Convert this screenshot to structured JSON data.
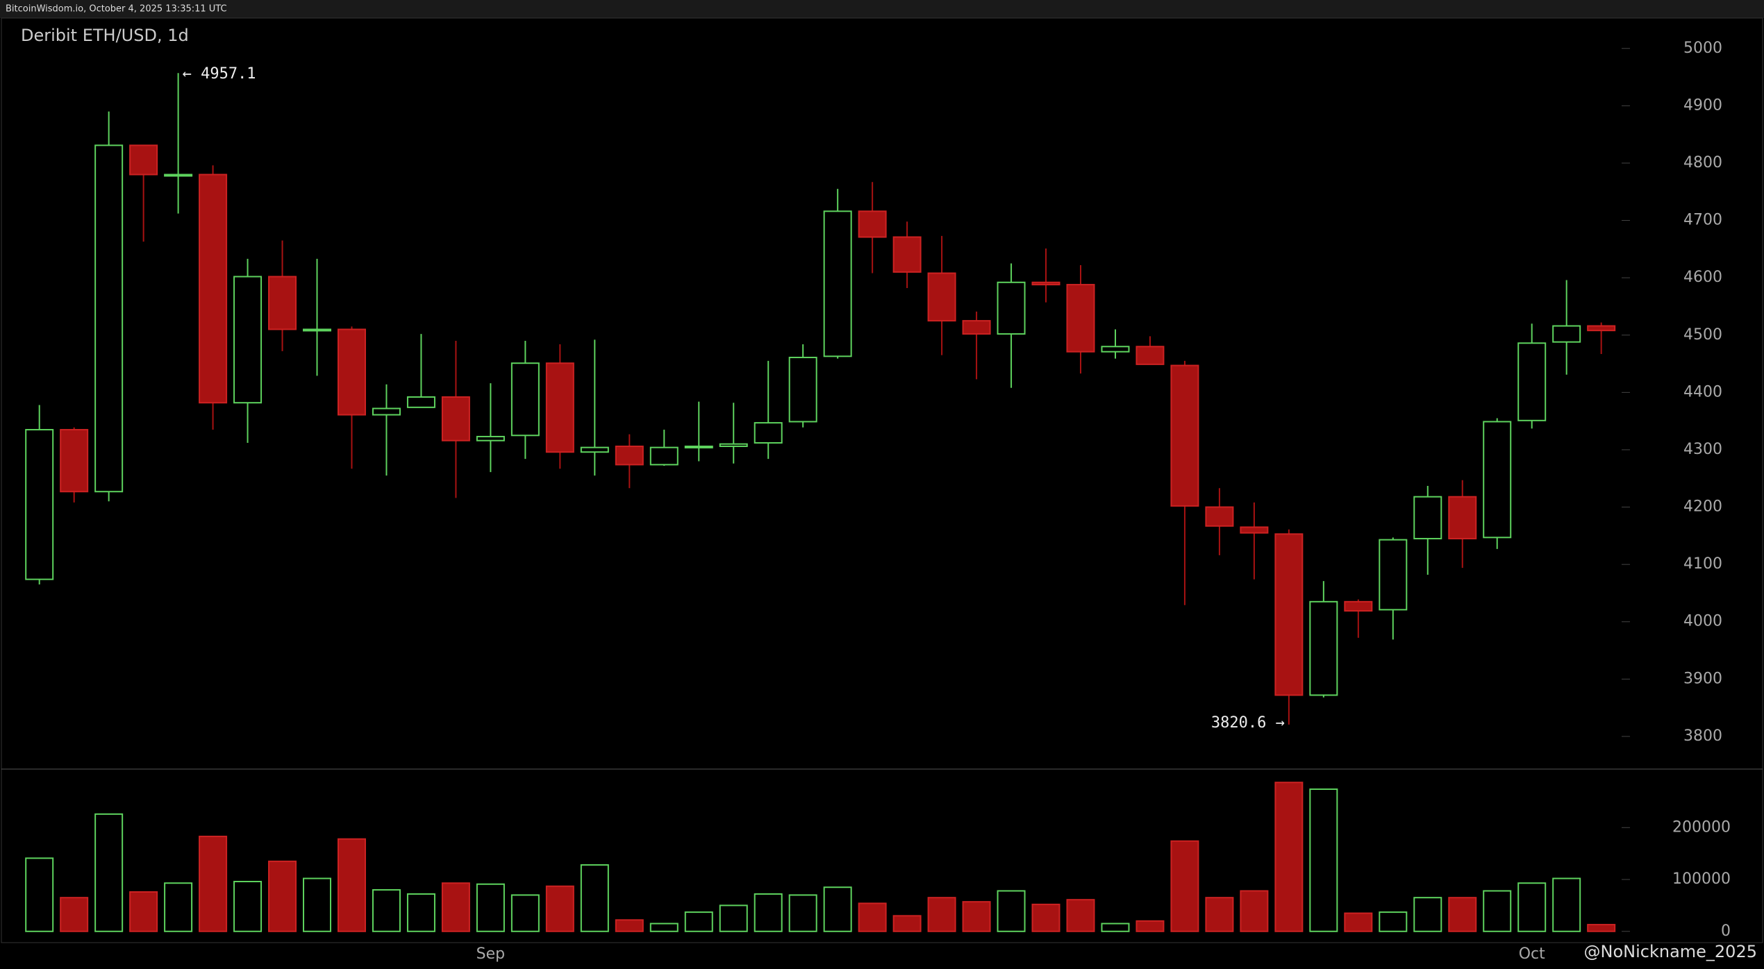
{
  "header": "BitcoinWisdom.io, October 4, 2025 13:35:11 UTC",
  "watermark": "@NoNickname_2025",
  "chart_data": {
    "type": "candlestick",
    "title": "Deribit ETH/USD, 1d",
    "categories": [
      null,
      null,
      null,
      null,
      null,
      null,
      null,
      null,
      null,
      null,
      null,
      null,
      null,
      "Sep",
      null,
      null,
      null,
      null,
      null,
      null,
      null,
      null,
      null,
      null,
      null,
      null,
      null,
      null,
      null,
      null,
      null,
      null,
      null,
      null,
      null,
      null,
      null,
      null,
      null,
      null,
      null,
      null,
      null,
      "Oct",
      null,
      null
    ],
    "open": [
      4074,
      4335,
      4227,
      4831,
      4778,
      4780,
      4382,
      4602,
      4508,
      4510,
      4361,
      4374,
      4392,
      4316,
      4325,
      4451,
      4296,
      4306,
      4274,
      4304,
      4306,
      4312,
      4349,
      4463,
      4716,
      4671,
      4608,
      4525,
      4502,
      4592,
      4588,
      4471,
      4480,
      4447,
      4200,
      4165,
      4153,
      3872,
      4035,
      4021,
      4145,
      4218,
      4147,
      4351,
      4488,
      4516
    ],
    "high": [
      4378,
      4339,
      4890,
      4831,
      4957.1,
      4796,
      4633,
      4665,
      4633,
      4515,
      4414,
      4502,
      4490,
      4416,
      4490,
      4484,
      4492,
      4327,
      4335,
      4384,
      4382,
      4455,
      4484,
      4755,
      4767,
      4698,
      4673,
      4541,
      4625,
      4651,
      4622,
      4510,
      4498,
      4455,
      4233,
      4208,
      4161,
      4071,
      4039,
      4147,
      4237,
      4247,
      4355,
      4520,
      4596,
      4522
    ],
    "low": [
      4065,
      4208,
      4210,
      4663,
      4712,
      4335,
      4312,
      4472,
      4429,
      4267,
      4255,
      4374,
      4216,
      4261,
      4284,
      4267,
      4255,
      4233,
      4272,
      4280,
      4276,
      4284,
      4339,
      4459,
      4608,
      4582,
      4465,
      4423,
      4408,
      4557,
      4433,
      4459,
      4449,
      4029,
      4116,
      4074,
      3820.6,
      3868,
      3972,
      3969,
      4082,
      4094,
      4127,
      4337,
      4431,
      4467
    ],
    "close": [
      4335,
      4227,
      4831,
      4780,
      4780,
      4382,
      4602,
      4510,
      4510,
      4361,
      4372,
      4392,
      4316,
      4323,
      4451,
      4296,
      4304,
      4274,
      4304,
      4306,
      4310,
      4347,
      4461,
      4716,
      4671,
      4610,
      4525,
      4502,
      4592,
      4588,
      4471,
      4480,
      4449,
      4202,
      4167,
      4155,
      3872,
      4035,
      4019,
      4143,
      4218,
      4145,
      4349,
      4486,
      4516,
      4508
    ],
    "volume": [
      141000,
      65000,
      226000,
      76000,
      93000,
      183000,
      96000,
      135000,
      102000,
      178000,
      80000,
      72000,
      93000,
      91000,
      70000,
      87000,
      128000,
      22000,
      15000,
      37000,
      50000,
      72000,
      70000,
      85000,
      54000,
      30000,
      65000,
      57000,
      78000,
      52000,
      61000,
      15000,
      20000,
      174000,
      65000,
      78000,
      287000,
      274000,
      35000,
      37000,
      65000,
      65000,
      78000,
      93000,
      102000,
      13000
    ],
    "up_color": "#5ed35e",
    "down_color": "#a81212",
    "ylim": [
      3743,
      5053
    ],
    "yticks": [
      3800,
      3900,
      4000,
      4100,
      4200,
      4300,
      4400,
      4500,
      4600,
      4700,
      4800,
      4900,
      5000
    ],
    "y2lim": [
      -21700,
      308700
    ],
    "y2ticks": [
      0,
      100000,
      200000
    ],
    "annotations": [
      {
        "text": "← 4957.1"
      },
      {
        "text": "3820.6 →"
      }
    ]
  }
}
